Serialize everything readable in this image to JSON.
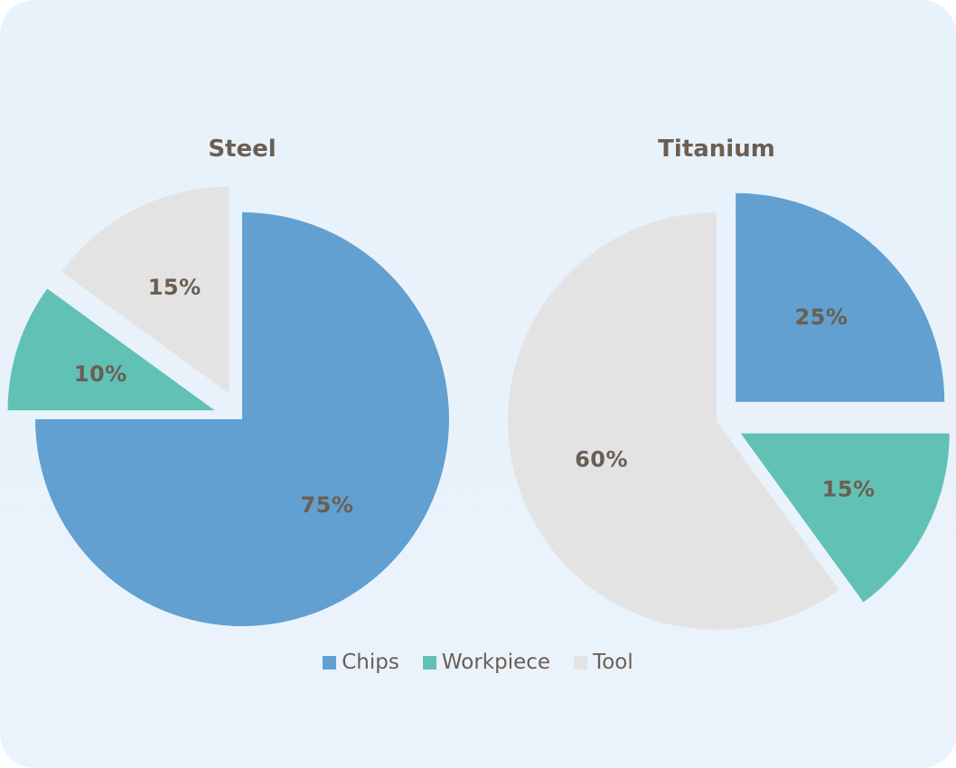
{
  "chart_data": [
    {
      "type": "pie",
      "title": "Steel",
      "categories": [
        "Chips",
        "Workpiece",
        "Tool"
      ],
      "values": [
        75,
        10,
        15
      ],
      "labels": [
        "75%",
        "10%",
        "15%"
      ],
      "exploded": [
        "Workpiece",
        "Tool"
      ],
      "start_angle": "12 o'clock, clockwise"
    },
    {
      "type": "pie",
      "title": "Titanium",
      "categories": [
        "Chips",
        "Workpiece",
        "Tool"
      ],
      "values": [
        25,
        15,
        60
      ],
      "labels": [
        "25%",
        "15%",
        "60%"
      ],
      "exploded": [
        "Chips",
        "Workpiece"
      ],
      "start_angle": "12 o'clock, clockwise"
    }
  ],
  "legend": {
    "placement": "bottom-center",
    "items": [
      {
        "label": "Chips",
        "color": "#61a0d0"
      },
      {
        "label": "Workpiece",
        "color": "#62c1b5"
      },
      {
        "label": "Tool",
        "color": "#e3e3e3"
      }
    ]
  },
  "colors": {
    "Chips": "#61a0d0",
    "Workpiece": "#62c1b5",
    "Tool": "#e3e3e3",
    "text": "#6b5e52",
    "background": "#e9f2fa"
  }
}
